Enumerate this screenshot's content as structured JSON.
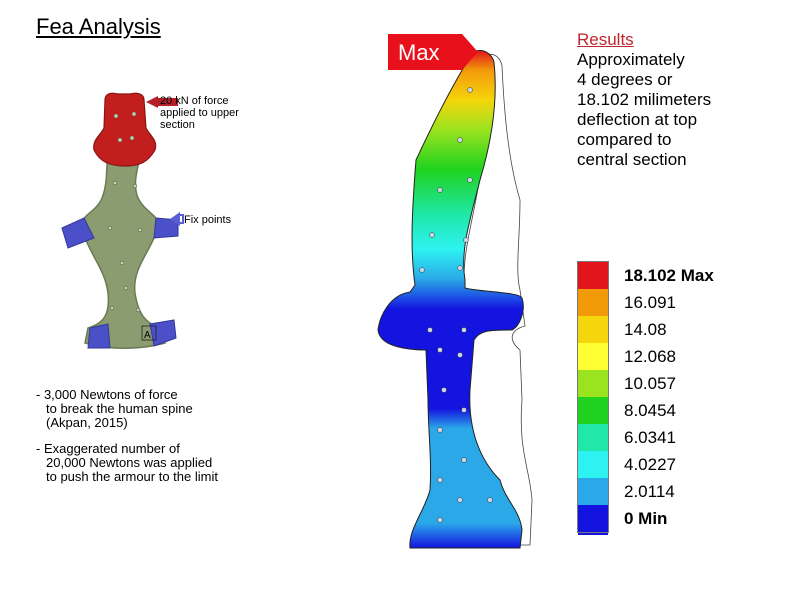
{
  "slide": {
    "title": "Fea Analysis"
  },
  "results": {
    "heading": "Results",
    "lines": [
      "Approximately",
      "4 degrees or",
      "18.102 milimeters",
      "deflection at top",
      "compared to",
      "central section"
    ]
  },
  "left_model": {
    "force_annotation": "20 kN of force applied to upper section",
    "fix_annotation": "Fix points",
    "point_label": "A",
    "colors": {
      "load": "#c21e1e",
      "body": "#8a9c70",
      "fixed": "#4b4fc8",
      "arrow_red": "#b3202a",
      "arrow_blue": "#5a5fd6"
    }
  },
  "notes": [
    {
      "lines": [
        "- 3,000 Newtons of force",
        "to break the human spine",
        "(Akpan, 2015)"
      ]
    },
    {
      "lines": [
        "- Exaggerated number of",
        "20,000 Newtons was applied",
        "to push the armour to the limit"
      ]
    }
  ],
  "right_model": {
    "max_label": "Max",
    "max_flag_color": "#e8101a"
  },
  "legend": {
    "entries": [
      {
        "label": "18.102 Max",
        "color": "#e3141b",
        "bold": true
      },
      {
        "label": "16.091",
        "color": "#f39a0b",
        "bold": false
      },
      {
        "label": "14.08",
        "color": "#f5d50b",
        "bold": false
      },
      {
        "label": "12.068",
        "color": "#ffff33",
        "bold": false
      },
      {
        "label": "10.057",
        "color": "#99e31f",
        "bold": false
      },
      {
        "label": "8.0454",
        "color": "#1fd21f",
        "bold": false
      },
      {
        "label": "6.0341",
        "color": "#1fe8a8",
        "bold": false
      },
      {
        "label": "4.0227",
        "color": "#2ef2f2",
        "bold": false
      },
      {
        "label": "2.0114",
        "color": "#2aa8e8",
        "bold": false
      },
      {
        "label": "0 Min",
        "color": "#1414e0",
        "bold": true
      }
    ]
  }
}
